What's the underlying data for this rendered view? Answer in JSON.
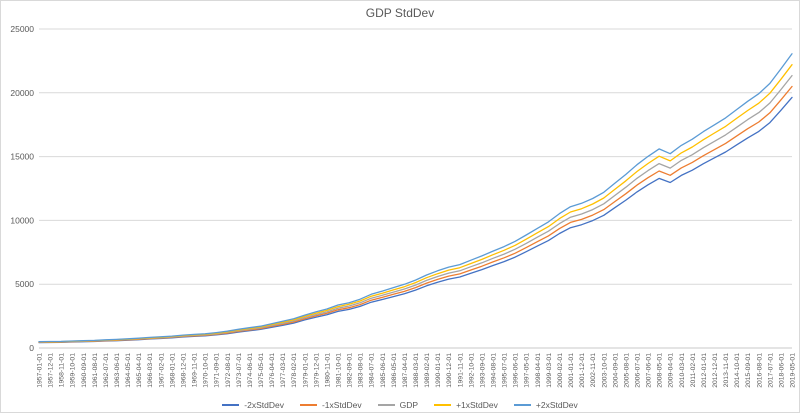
{
  "chart_data": {
    "type": "line",
    "title": "GDP StdDev",
    "xlabel": "",
    "ylabel": "",
    "ylim": [
      0,
      25000
    ],
    "yticks": [
      0,
      5000,
      10000,
      15000,
      20000,
      25000
    ],
    "grid": true,
    "legend_position": "bottom",
    "axis_label_color": "#595959",
    "gridline_color": "#d9d9d9",
    "axis_line_color": "#c9c9c9",
    "x": [
      "1957-01-01",
      "1957-12-01",
      "1958-11-01",
      "1959-10-01",
      "1960-09-01",
      "1961-08-01",
      "1962-07-01",
      "1963-06-01",
      "1964-05-01",
      "1965-04-01",
      "1966-03-01",
      "1967-02-01",
      "1968-01-01",
      "1968-12-01",
      "1969-11-01",
      "1970-10-01",
      "1971-09-01",
      "1972-08-01",
      "1973-07-01",
      "1974-06-01",
      "1975-05-01",
      "1976-04-01",
      "1977-03-01",
      "1978-02-01",
      "1979-01-01",
      "1979-12-01",
      "1980-11-01",
      "1981-10-01",
      "1982-09-01",
      "1983-08-01",
      "1984-07-01",
      "1985-06-01",
      "1986-05-01",
      "1987-04-01",
      "1988-03-01",
      "1989-02-01",
      "1990-01-01",
      "1990-12-01",
      "1991-11-01",
      "1992-10-01",
      "1993-09-01",
      "1994-08-01",
      "1995-07-01",
      "1996-06-01",
      "1997-05-01",
      "1998-04-01",
      "1999-03-01",
      "2000-02-01",
      "2001-01-01",
      "2001-12-01",
      "2002-11-01",
      "2003-10-01",
      "2004-09-01",
      "2005-08-01",
      "2006-07-01",
      "2007-06-01",
      "2008-05-01",
      "2009-04-01",
      "2010-03-01",
      "2011-02-01",
      "2012-01-01",
      "2012-12-01",
      "2013-11-01",
      "2014-10-01",
      "2015-09-01",
      "2016-08-01",
      "2017-07-01",
      "2018-06-01",
      "2019-05-01"
    ],
    "series": [
      {
        "name": "-2xStdDev",
        "color": "#4472C4",
        "values": [
          423,
          432,
          442,
          469,
          492,
          511,
          547,
          575,
          612,
          653,
          708,
          745,
          796,
          860,
          906,
          948,
          1026,
          1122,
          1247,
          1352,
          1454,
          1619,
          1780,
          1950,
          2199,
          2410,
          2604,
          2870,
          3027,
          3257,
          3588,
          3800,
          4030,
          4250,
          4536,
          4876,
          5152,
          5400,
          5566,
          5860,
          6146,
          6468,
          6771,
          7121,
          7544,
          7986,
          8418,
          8970,
          9430,
          9660,
          9982,
          10396,
          10994,
          11592,
          12236,
          12788,
          13294,
          12972,
          13524,
          13938,
          14444,
          14904,
          15364,
          15916,
          16468,
          16974,
          17664,
          18630,
          19642
        ]
      },
      {
        "name": "-1xStdDev",
        "color": "#ED7D31",
        "values": [
          442,
          451,
          461,
          490,
          514,
          533,
          571,
          600,
          638,
          682,
          739,
          778,
          830,
          898,
          946,
          989,
          1070,
          1171,
          1301,
          1411,
          1517,
          1690,
          1858,
          2035,
          2294,
          2515,
          2717,
          2995,
          3158,
          3398,
          3744,
          3965,
          4205,
          4435,
          4733,
          5088,
          5376,
          5635,
          5808,
          6115,
          6413,
          6749,
          7066,
          7430,
          7872,
          8333,
          8784,
          9360,
          9840,
          10080,
          10416,
          10848,
          11472,
          12096,
          12768,
          13344,
          13872,
          13536,
          14112,
          14544,
          15072,
          15552,
          16032,
          16608,
          17184,
          17712,
          18432,
          19440,
          20496
        ]
      },
      {
        "name": "GDP",
        "color": "#A5A5A5",
        "values": [
          460,
          470,
          480,
          510,
          535,
          555,
          595,
          625,
          665,
          710,
          770,
          810,
          865,
          935,
          985,
          1030,
          1115,
          1220,
          1355,
          1470,
          1580,
          1760,
          1935,
          2120,
          2390,
          2620,
          2830,
          3120,
          3290,
          3540,
          3900,
          4130,
          4380,
          4620,
          4930,
          5300,
          5600,
          5870,
          6050,
          6370,
          6680,
          7030,
          7360,
          7740,
          8200,
          8680,
          9150,
          9750,
          10250,
          10500,
          10850,
          11300,
          11950,
          12600,
          13300,
          13900,
          14450,
          14100,
          14700,
          15150,
          15700,
          16200,
          16700,
          17300,
          17900,
          18450,
          19200,
          20250,
          21350
        ]
      },
      {
        "name": "+1xStdDev",
        "color": "#FFC000",
        "values": [
          478,
          489,
          499,
          530,
          556,
          577,
          619,
          650,
          692,
          738,
          801,
          842,
          900,
          972,
          1024,
          1071,
          1160,
          1269,
          1409,
          1529,
          1643,
          1830,
          2012,
          2205,
          2486,
          2725,
          2943,
          3245,
          3422,
          3682,
          4056,
          4295,
          4555,
          4805,
          5127,
          5512,
          5824,
          6105,
          6292,
          6625,
          6947,
          7311,
          7654,
          8050,
          8528,
          9027,
          9516,
          10140,
          10660,
          10920,
          11284,
          11752,
          12428,
          13104,
          13832,
          14456,
          15028,
          14664,
          15288,
          15756,
          16328,
          16848,
          17368,
          17992,
          18616,
          19188,
          19968,
          21060,
          22204
        ]
      },
      {
        "name": "+2xStdDev",
        "color": "#5B9BD5",
        "values": [
          497,
          508,
          518,
          551,
          578,
          599,
          643,
          675,
          718,
          767,
          832,
          875,
          934,
          1010,
          1064,
          1112,
          1204,
          1318,
          1463,
          1588,
          1706,
          1901,
          2090,
          2290,
          2581,
          2830,
          3056,
          3370,
          3553,
          3823,
          4212,
          4460,
          4730,
          4990,
          5324,
          5724,
          6048,
          6340,
          6534,
          6880,
          7214,
          7592,
          7949,
          8359,
          8856,
          9374,
          9882,
          10530,
          11070,
          11340,
          11718,
          12204,
          12906,
          13608,
          14364,
          15012,
          15606,
          15228,
          15876,
          16362,
          16956,
          17496,
          18036,
          18684,
          19332,
          19926,
          20736,
          21870,
          23058
        ]
      }
    ]
  }
}
